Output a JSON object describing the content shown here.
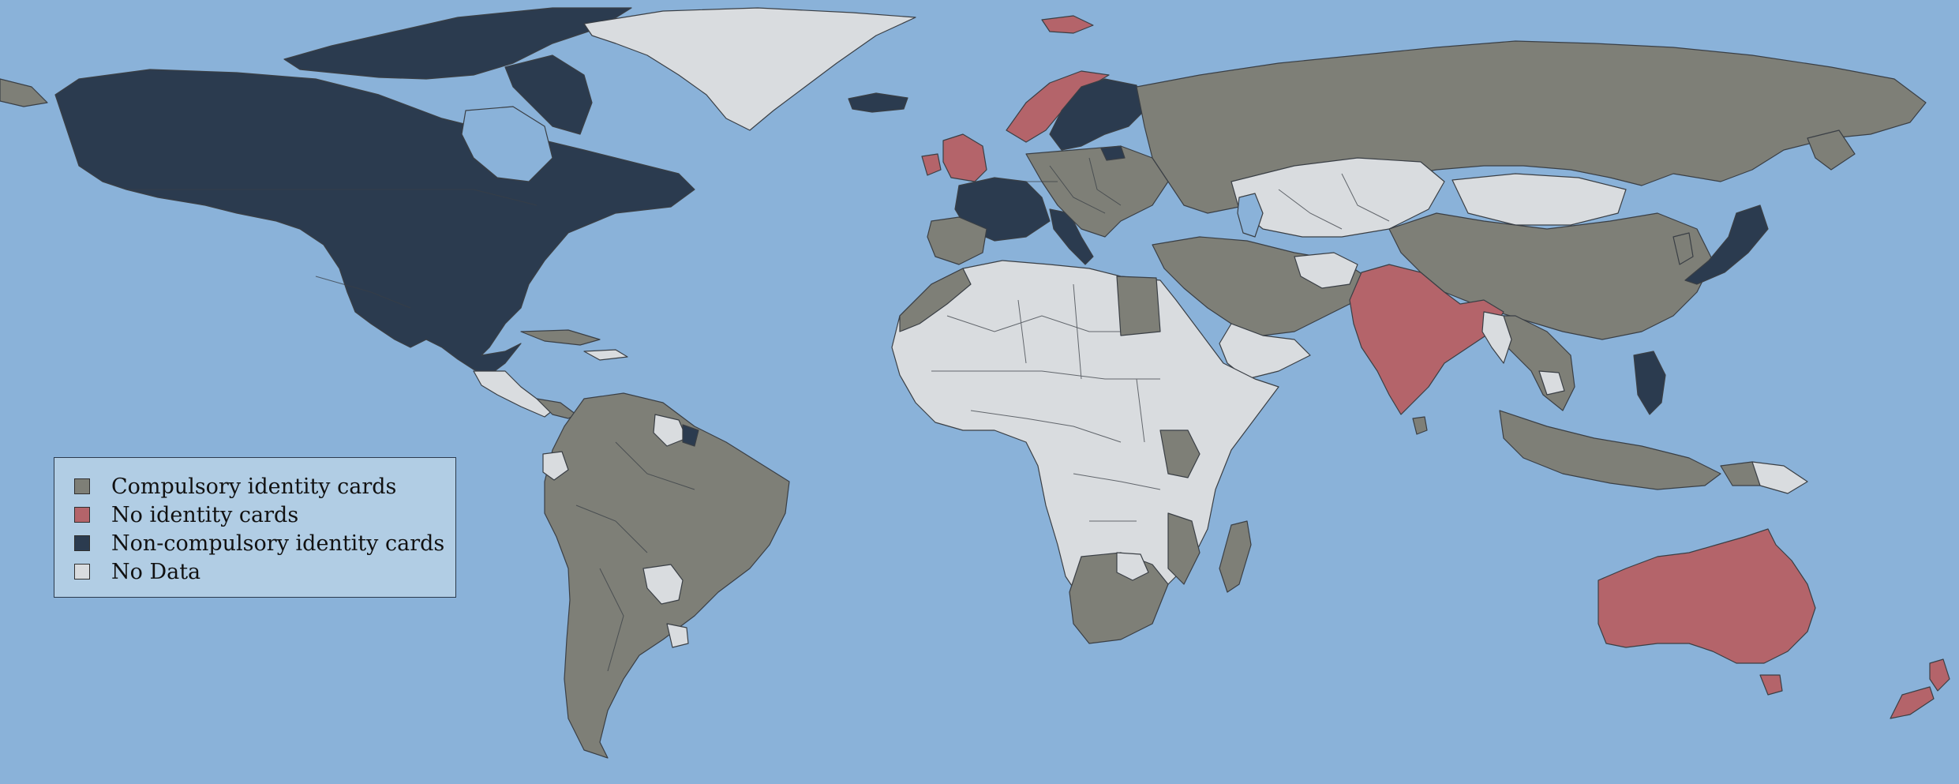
{
  "colors": {
    "ocean": "#8ab2d9",
    "compulsory": "#7e7f77",
    "no_cards": "#b4646a",
    "non_compulsory": "#2b3b4f",
    "no_data": "#d9dcdf"
  },
  "legend": {
    "items": [
      {
        "label": "Compulsory identity cards",
        "color": "#7e7f77"
      },
      {
        "label": "No identity cards",
        "color": "#b4646a"
      },
      {
        "label": "Non-compulsory identity cards",
        "color": "#2b3b4f"
      },
      {
        "label": "No Data",
        "color": "#d9dcdf"
      }
    ]
  }
}
